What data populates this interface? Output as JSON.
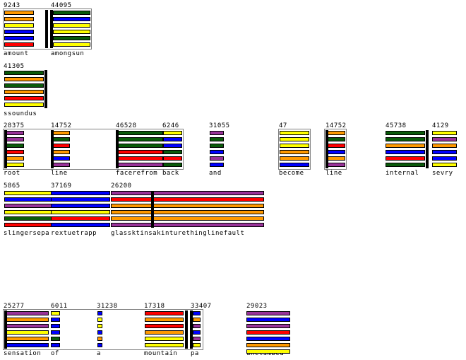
{
  "colors": {
    "green": "#0a5a0a",
    "orange": "#ff9900",
    "yellow": "#ffff00",
    "blue": "#0000ff",
    "red": "#ff0000",
    "purple": "#993399"
  },
  "blocks": [
    {
      "id": "b1",
      "number": "9243",
      "word": "amount"
    },
    {
      "id": "b2",
      "number": "44095",
      "word": "amongsun"
    },
    {
      "id": "b3",
      "number": "41305",
      "word": "ssoundus"
    },
    {
      "id": "b4",
      "number": "28375",
      "word": "root"
    },
    {
      "id": "b5",
      "number": "14752",
      "word": "line"
    },
    {
      "id": "b6",
      "number": "46528",
      "word": "facerefrom"
    },
    {
      "id": "b7",
      "number": "6246",
      "word": "back"
    },
    {
      "id": "b8",
      "number": "31055",
      "word": "and"
    },
    {
      "id": "b9",
      "number": "47",
      "word": "become"
    },
    {
      "id": "b10",
      "number": "14752",
      "word": "line"
    },
    {
      "id": "b11",
      "number": "45738",
      "word": "internal"
    },
    {
      "id": "b12",
      "number": "4129",
      "word": "sevry"
    },
    {
      "id": "b13",
      "number": "5865",
      "word": "slingersepa"
    },
    {
      "id": "b14",
      "number": "37169",
      "word": "rextuetrapp"
    },
    {
      "id": "b15",
      "number": "26200",
      "word": "glassktinsakinturethinglinefault"
    },
    {
      "id": "b16",
      "number": "25277",
      "word": "sensation"
    },
    {
      "id": "b17",
      "number": "6011",
      "word": "of"
    },
    {
      "id": "b18",
      "number": "31238",
      "word": "a"
    },
    {
      "id": "b19",
      "number": "17318",
      "word": "mountain"
    },
    {
      "id": "b20",
      "number": "33407",
      "word": "pa"
    },
    {
      "id": "b21",
      "number": "29023",
      "word": "unclimbed"
    }
  ]
}
